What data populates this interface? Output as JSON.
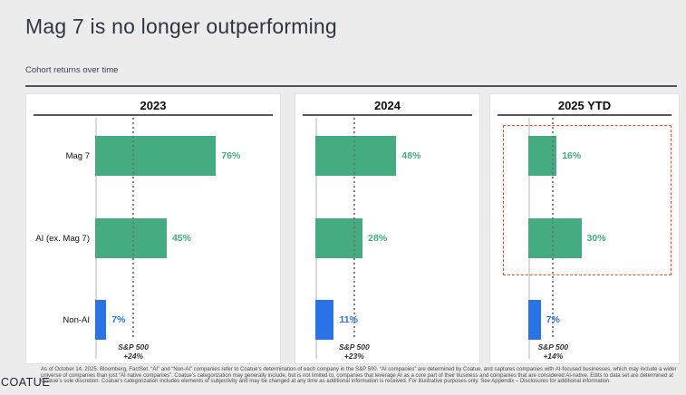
{
  "title": "Mag 7 is no longer outperforming",
  "subtitle": "Cohort returns over time",
  "colors": {
    "background": "#ececec",
    "green": "#45ab81",
    "blue": "#2a72e5",
    "highlight_red": "#e8491f",
    "title_text": "#2e3642"
  },
  "chart_data": {
    "type": "bar",
    "orientation": "horizontal",
    "title": "Cohort returns over time",
    "unit": "%",
    "grid": "off",
    "legend": "none",
    "categories": [
      "Mag 7",
      "AI (ex. Mag 7)",
      "Non-AI"
    ],
    "category_colors": [
      "#45ab81",
      "#45ab81",
      "#2a72e5"
    ],
    "panels": [
      {
        "title": "2023",
        "values": [
          76,
          45,
          7
        ],
        "value_labels": [
          "76%",
          "45%",
          "7%"
        ],
        "xlim": [
          0,
          114
        ],
        "benchmark": {
          "name": "S&P 500",
          "value": 24,
          "label_line1": "S&P 500",
          "label_line2": "+24%"
        }
      },
      {
        "title": "2024",
        "values": [
          48,
          28,
          11
        ],
        "value_labels": [
          "48%",
          "28%",
          "11%"
        ],
        "xlim": [
          0,
          95
        ],
        "benchmark": {
          "name": "S&P 500",
          "value": 23,
          "label_line1": "S&P 500",
          "label_line2": "+23%"
        }
      },
      {
        "title": "2025 YTD",
        "values": [
          16,
          30,
          7
        ],
        "value_labels": [
          "16%",
          "30%",
          "7%"
        ],
        "xlim": [
          0,
          83
        ],
        "benchmark": {
          "name": "S&P 500",
          "value": 14,
          "label_line1": "S&P 500",
          "label_line2": "+14%"
        },
        "highlight": {
          "type": "dashed-box",
          "rows": [
            "Mag 7",
            "AI (ex. Mag 7)"
          ],
          "color": "#e8491f"
        }
      }
    ]
  },
  "footer": {
    "logo": "COATUE",
    "disclaimer": "As of October 14, 2025. Bloomberg, FactSet. “AI” and “Non-AI” companies refer to Coatue’s determination of each company in the S&P 500. “AI companies” are determined by Coatue, and captures companies with AI-focused businesses, which may include a wider universe of companies than just “AI native companies”. Coatue’s categorization may generally include, but is not limited to, companies that leverage AI as a core part of their business and companies that are considered AI-native. Edits to data set are determined at Coatue’s sole discretion. Coatue’s categorization includes elements of subjectivity and may be changed at any time as additional information is received. For illustrative purposes only. See Appendix – Disclosures for additional information."
  }
}
